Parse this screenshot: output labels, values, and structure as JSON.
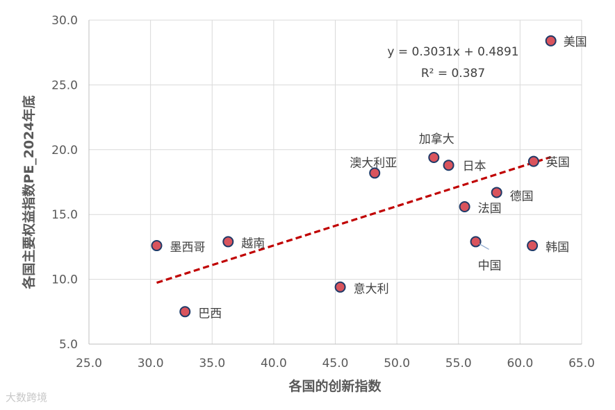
{
  "chart_data": {
    "type": "scatter",
    "xlabel": "各国的创新指数",
    "ylabel": "各国主要权益指数PE_2024年底",
    "xlim": [
      25.0,
      65.0
    ],
    "ylim": [
      5.0,
      30.0
    ],
    "x_ticks": [
      "25.0",
      "30.0",
      "35.0",
      "40.0",
      "45.0",
      "50.0",
      "55.0",
      "60.0",
      "65.0"
    ],
    "y_ticks": [
      "5.0",
      "10.0",
      "15.0",
      "20.0",
      "25.0",
      "30.0"
    ],
    "grid": true,
    "points": [
      {
        "label": "美国",
        "x": 62.5,
        "y": 28.4
      },
      {
        "label": "加拿大",
        "x": 53.0,
        "y": 19.4
      },
      {
        "label": "日本",
        "x": 54.2,
        "y": 18.8
      },
      {
        "label": "英国",
        "x": 61.1,
        "y": 19.1
      },
      {
        "label": "澳大利亚",
        "x": 48.2,
        "y": 18.2
      },
      {
        "label": "德国",
        "x": 58.1,
        "y": 16.7
      },
      {
        "label": "法国",
        "x": 55.5,
        "y": 15.6
      },
      {
        "label": "墨西哥",
        "x": 30.5,
        "y": 12.6
      },
      {
        "label": "越南",
        "x": 36.3,
        "y": 12.9
      },
      {
        "label": "中国",
        "x": 56.4,
        "y": 12.9
      },
      {
        "label": "韩国",
        "x": 61.0,
        "y": 12.6
      },
      {
        "label": "意大利",
        "x": 45.4,
        "y": 9.4
      },
      {
        "label": "巴西",
        "x": 32.8,
        "y": 7.5
      }
    ],
    "trendline": {
      "slope": 0.3031,
      "intercept": 0.4891,
      "x_range": [
        30.5,
        62.5
      ],
      "equation": "y = 0.3031x + 0.4891",
      "r_squared": "R² = 0.387",
      "color": "#c00000"
    },
    "point_color": "#d9545d",
    "point_edge_color": "#1f3a68"
  },
  "watermark": "大数跨境"
}
